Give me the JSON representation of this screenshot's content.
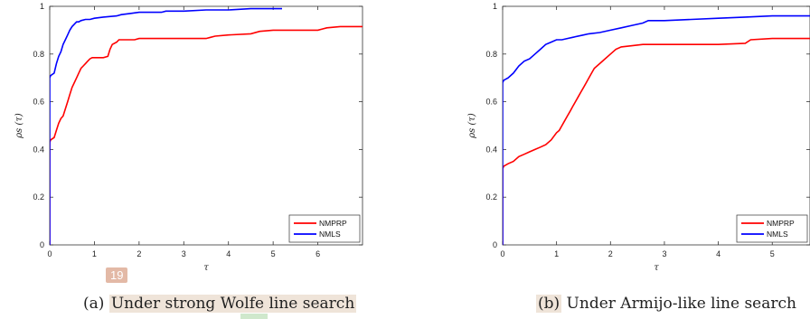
{
  "captions": {
    "a": "(a) Under strong Wolfe line search",
    "a_prefix": "(a) ",
    "a_highlight": "Under strong Wolfe line search",
    "b": "(b) Under Armijo-like line search",
    "b_prefix": "(b)",
    "b_highlight": " Under Armijo-like line search"
  },
  "badge": "19",
  "chart_data": [
    {
      "type": "line",
      "title": "",
      "xlabel": "τ",
      "ylabel": "ρs (τ)",
      "xlim": [
        0,
        7
      ],
      "ylim": [
        0,
        1
      ],
      "xticks": [
        "0",
        "1",
        "2",
        "3",
        "4",
        "5",
        "6"
      ],
      "yticks": [
        "0",
        "0.2",
        "0.4",
        "0.6",
        "0.8",
        "1"
      ],
      "grid": false,
      "legend_position": "bottom-right",
      "series": [
        {
          "name": "NMPRP",
          "color": "#ff0000",
          "x": [
            0,
            0,
            0.02,
            0.1,
            0.15,
            0.2,
            0.25,
            0.3,
            0.35,
            0.4,
            0.45,
            0.5,
            0.55,
            0.6,
            0.65,
            0.7,
            0.75,
            0.8,
            0.85,
            0.9,
            0.95,
            1.0,
            1.1,
            1.2,
            1.3,
            1.35,
            1.4,
            1.5,
            1.55,
            1.6,
            1.7,
            1.9,
            2.0,
            2.5,
            3.0,
            3.5,
            3.6,
            3.7,
            4.0,
            4.5,
            4.7,
            5.0,
            5.5,
            6.0,
            6.1,
            6.2,
            6.5,
            7.0
          ],
          "y": [
            0,
            0.43,
            0.44,
            0.45,
            0.48,
            0.51,
            0.53,
            0.54,
            0.57,
            0.6,
            0.63,
            0.66,
            0.68,
            0.7,
            0.72,
            0.74,
            0.75,
            0.76,
            0.77,
            0.78,
            0.785,
            0.785,
            0.785,
            0.785,
            0.79,
            0.82,
            0.84,
            0.85,
            0.86,
            0.86,
            0.86,
            0.86,
            0.865,
            0.865,
            0.865,
            0.865,
            0.87,
            0.875,
            0.88,
            0.885,
            0.895,
            0.9,
            0.9,
            0.9,
            0.905,
            0.91,
            0.915,
            0.915
          ]
        },
        {
          "name": "NMLS",
          "color": "#0000ff",
          "x": [
            0,
            0,
            0.02,
            0.1,
            0.15,
            0.2,
            0.25,
            0.3,
            0.35,
            0.4,
            0.45,
            0.5,
            0.55,
            0.6,
            0.65,
            0.7,
            0.8,
            0.9,
            1.0,
            1.2,
            1.5,
            1.6,
            1.8,
            2.0,
            2.5,
            2.6,
            3.0,
            3.5,
            4.0,
            4.5,
            5.0,
            5.2
          ],
          "y": [
            0,
            0.7,
            0.71,
            0.72,
            0.76,
            0.79,
            0.81,
            0.84,
            0.86,
            0.88,
            0.9,
            0.915,
            0.925,
            0.935,
            0.935,
            0.94,
            0.945,
            0.945,
            0.95,
            0.955,
            0.96,
            0.965,
            0.97,
            0.975,
            0.975,
            0.98,
            0.98,
            0.985,
            0.985,
            0.99,
            0.99,
            0.99
          ]
        }
      ]
    },
    {
      "type": "line",
      "title": "",
      "xlabel": "τ",
      "ylabel": "ρs (τ)",
      "xlim": [
        0,
        5.7
      ],
      "ylim": [
        0,
        1
      ],
      "xticks": [
        "0",
        "1",
        "2",
        "3",
        "4",
        "5"
      ],
      "yticks": [
        "0",
        "0.2",
        "0.4",
        "0.6",
        "0.8",
        "1"
      ],
      "grid": false,
      "legend_position": "bottom-right",
      "series": [
        {
          "name": "NMPRP",
          "color": "#ff0000",
          "x": [
            0,
            0,
            0.02,
            0.1,
            0.2,
            0.3,
            0.4,
            0.5,
            0.6,
            0.7,
            0.8,
            0.9,
            1.0,
            1.05,
            1.1,
            1.15,
            1.2,
            1.25,
            1.3,
            1.35,
            1.4,
            1.45,
            1.5,
            1.55,
            1.6,
            1.65,
            1.7,
            1.8,
            1.9,
            2.0,
            2.1,
            2.2,
            2.4,
            2.6,
            3.0,
            3.5,
            4.0,
            4.5,
            4.6,
            5.0,
            5.7
          ],
          "y": [
            0,
            0.32,
            0.33,
            0.34,
            0.35,
            0.37,
            0.38,
            0.39,
            0.4,
            0.41,
            0.42,
            0.44,
            0.47,
            0.48,
            0.5,
            0.52,
            0.54,
            0.56,
            0.58,
            0.6,
            0.62,
            0.64,
            0.66,
            0.68,
            0.7,
            0.72,
            0.74,
            0.76,
            0.78,
            0.8,
            0.82,
            0.83,
            0.835,
            0.84,
            0.84,
            0.84,
            0.84,
            0.845,
            0.86,
            0.865,
            0.865
          ]
        },
        {
          "name": "NMLS",
          "color": "#0000ff",
          "x": [
            0,
            0,
            0.02,
            0.1,
            0.2,
            0.3,
            0.4,
            0.5,
            0.6,
            0.7,
            0.8,
            0.9,
            1.0,
            1.1,
            1.2,
            1.3,
            1.5,
            1.6,
            1.8,
            2.0,
            2.2,
            2.4,
            2.6,
            2.7,
            3.0,
            3.5,
            4.0,
            4.5,
            5.0,
            5.5,
            5.7
          ],
          "y": [
            0,
            0.68,
            0.69,
            0.7,
            0.72,
            0.75,
            0.77,
            0.78,
            0.8,
            0.82,
            0.84,
            0.85,
            0.86,
            0.86,
            0.865,
            0.87,
            0.88,
            0.885,
            0.89,
            0.9,
            0.91,
            0.92,
            0.93,
            0.94,
            0.94,
            0.945,
            0.95,
            0.955,
            0.96,
            0.96,
            0.96
          ]
        }
      ]
    }
  ]
}
